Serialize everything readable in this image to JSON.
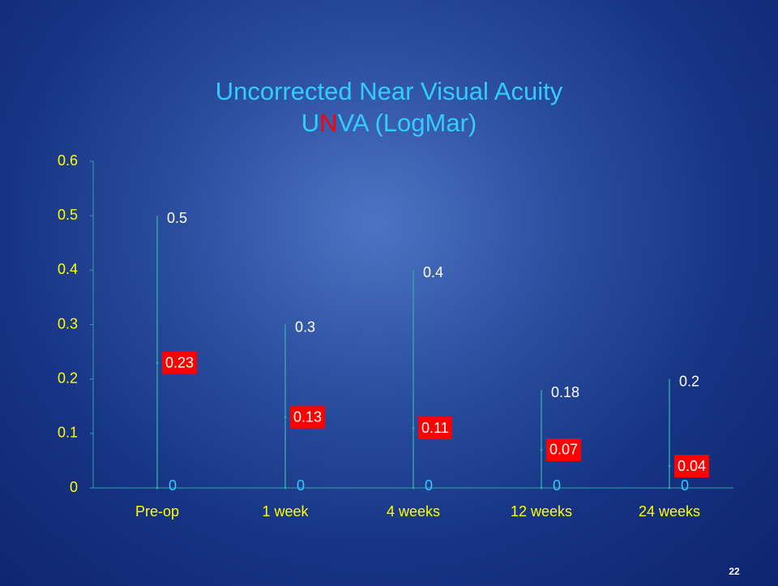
{
  "chart_data": {
    "type": "dropline",
    "title": "Uncorrected Near Visual Acuity",
    "subtitle_parts": [
      "U",
      "N",
      "VA (LogMar)"
    ],
    "subtitle_highlight": 1,
    "subtitle_highlight_color": "#ff0000",
    "categories": [
      "Pre-op",
      "1 week",
      "4 weeks",
      "12 weeks",
      "24 weeks"
    ],
    "series": [
      {
        "color": "#ffffff",
        "values": [
          0.5,
          0.3,
          0.4,
          0.18,
          0.2
        ]
      },
      {
        "color": "#ff0000",
        "values": [
          0.23,
          0.13,
          0.11,
          0.07,
          0.04
        ]
      },
      {
        "color": "#33ccff",
        "values": [
          0,
          0,
          0,
          0,
          0
        ]
      }
    ],
    "ylim": [
      0,
      0.6
    ],
    "yticks": [
      0,
      0.1,
      0.2,
      0.3,
      0.4,
      0.5,
      0.6
    ],
    "line_color": "#2fa3a8",
    "page_number": "22"
  }
}
